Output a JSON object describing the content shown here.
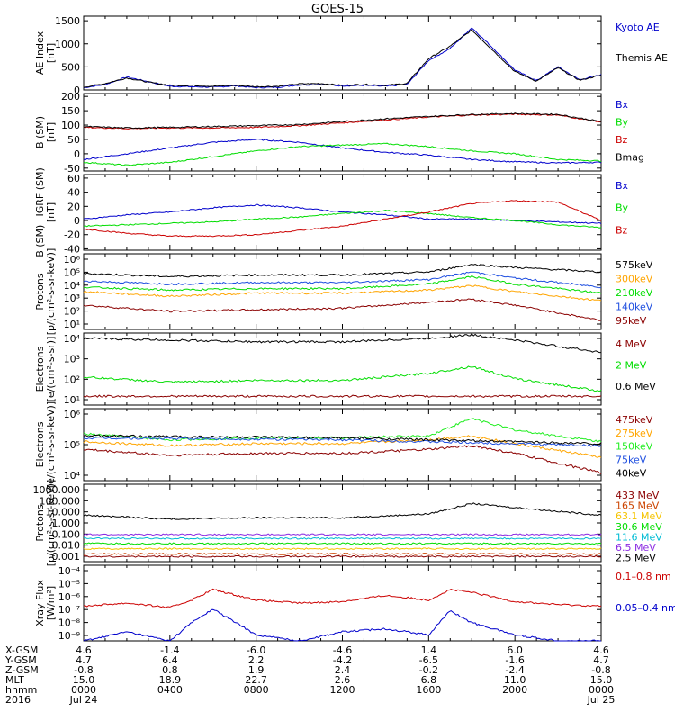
{
  "title": "GOES-15",
  "colors": {
    "black": "#000000",
    "blue": "#0000cc",
    "green": "#00dd00",
    "red": "#cc0000",
    "darkred": "#8b0000",
    "orange": "#ffa500",
    "lightgreen": "#22ee22",
    "royalblue": "#1f4fe0",
    "gold": "#f5c400",
    "cyan": "#00bcd4",
    "purple": "#8a2be2"
  },
  "chart_data": [
    {
      "type": "line",
      "ylabel": "AE Index\n[nT]",
      "yticks": [
        "1500",
        "1000",
        "500",
        "0"
      ],
      "series": [
        {
          "name": "Kyoto AE",
          "color": "#0000cc",
          "x": [
            0,
            1,
            2,
            3,
            4,
            5,
            6,
            7,
            8,
            9,
            10,
            11,
            12,
            13,
            14,
            15,
            16,
            17,
            18,
            19,
            20,
            21,
            22,
            23,
            24
          ],
          "values": [
            50,
            120,
            280,
            180,
            80,
            70,
            60,
            90,
            50,
            60,
            110,
            120,
            90,
            100,
            80,
            120,
            640,
            900,
            1350,
            900,
            430,
            200,
            500,
            220,
            330
          ]
        },
        {
          "name": "Themis AE",
          "color": "#000000",
          "x": [
            0,
            1,
            2,
            3,
            4,
            5,
            6,
            7,
            8,
            9,
            10,
            11,
            12,
            13,
            14,
            15,
            16,
            17,
            18,
            19,
            20,
            21,
            22,
            23,
            24
          ],
          "values": [
            60,
            140,
            260,
            170,
            100,
            100,
            80,
            100,
            70,
            80,
            130,
            140,
            100,
            120,
            100,
            140,
            680,
            950,
            1300,
            850,
            400,
            190,
            480,
            210,
            320
          ]
        }
      ]
    },
    {
      "type": "line",
      "ylabel": "B (SM)\n[nT]",
      "yticks": [
        "200",
        "150",
        "100",
        "50",
        "0",
        "-50"
      ],
      "series": [
        {
          "name": "Bx",
          "color": "#0000cc",
          "x": [
            0,
            2,
            4,
            6,
            8,
            10,
            12,
            14,
            16,
            18,
            20,
            22,
            24
          ],
          "values": [
            -20,
            0,
            20,
            40,
            50,
            40,
            20,
            5,
            -5,
            -20,
            -28,
            -32,
            -30
          ]
        },
        {
          "name": "By",
          "color": "#00dd00",
          "x": [
            0,
            2,
            4,
            6,
            8,
            10,
            12,
            14,
            16,
            18,
            20,
            22,
            24
          ],
          "values": [
            -30,
            -40,
            -30,
            -10,
            10,
            25,
            30,
            35,
            25,
            10,
            0,
            -20,
            -25
          ]
        },
        {
          "name": "Bz",
          "color": "#cc0000",
          "x": [
            0,
            2,
            4,
            6,
            8,
            10,
            12,
            14,
            16,
            18,
            20,
            22,
            24
          ],
          "values": [
            92,
            88,
            90,
            90,
            92,
            98,
            108,
            118,
            128,
            135,
            138,
            135,
            110
          ]
        },
        {
          "name": "Bmag",
          "color": "#000000",
          "x": [
            0,
            2,
            4,
            6,
            8,
            10,
            12,
            14,
            16,
            18,
            20,
            22,
            24
          ],
          "values": [
            95,
            90,
            92,
            95,
            98,
            102,
            112,
            122,
            130,
            137,
            140,
            137,
            112
          ]
        }
      ]
    },
    {
      "type": "line",
      "ylabel": "B (SM)−IGRF (SM)\n[nT]",
      "yticks": [
        "60",
        "40",
        "20",
        "0",
        "-20",
        "-40"
      ],
      "series": [
        {
          "name": "Bx",
          "color": "#0000cc",
          "x": [
            0,
            2,
            4,
            6,
            8,
            10,
            12,
            14,
            16,
            18,
            20,
            22,
            24
          ],
          "values": [
            2,
            8,
            12,
            18,
            22,
            18,
            12,
            8,
            2,
            2,
            0,
            -2,
            -4
          ]
        },
        {
          "name": "By",
          "color": "#00dd00",
          "x": [
            0,
            2,
            4,
            6,
            8,
            10,
            12,
            14,
            16,
            18,
            20,
            22,
            24
          ],
          "values": [
            -8,
            -6,
            -4,
            -2,
            2,
            5,
            10,
            14,
            10,
            4,
            0,
            -6,
            -10
          ]
        },
        {
          "name": "Bz",
          "color": "#cc0000",
          "x": [
            0,
            2,
            4,
            6,
            8,
            10,
            12,
            14,
            16,
            18,
            20,
            22,
            24
          ],
          "values": [
            -12,
            -18,
            -22,
            -22,
            -20,
            -14,
            -8,
            2,
            12,
            24,
            28,
            26,
            0
          ]
        }
      ]
    },
    {
      "type": "line",
      "yscale": "log",
      "ylabel": "Protons\n[p/(cm²-s-sr-keV)]",
      "yticks": [
        "10⁶",
        "10⁵",
        "10⁴",
        "10³",
        "10²",
        "10¹"
      ],
      "ylim_exp": [
        1,
        6
      ],
      "series": [
        {
          "name": "575keV",
          "color": "#000000",
          "x": [
            0,
            4,
            8,
            12,
            16,
            18,
            20,
            24
          ],
          "log10": [
            4.7,
            4.5,
            4.6,
            4.6,
            4.8,
            5.3,
            5.1,
            4.8
          ]
        },
        {
          "name": "300keV",
          "color": "#ffa500",
          "x": [
            0,
            4,
            8,
            12,
            16,
            18,
            20,
            24
          ],
          "log10": [
            3.5,
            3.2,
            3.4,
            3.4,
            3.6,
            3.9,
            3.5,
            2.9
          ]
        },
        {
          "name": "210keV",
          "color": "#00dd00",
          "x": [
            0,
            4,
            8,
            12,
            16,
            18,
            20,
            24
          ],
          "log10": [
            3.8,
            3.6,
            3.7,
            3.7,
            4.0,
            4.5,
            4.0,
            3.4
          ]
        },
        {
          "name": "140keV",
          "color": "#1f4fe0",
          "x": [
            0,
            4,
            8,
            12,
            16,
            18,
            20,
            24
          ],
          "log10": [
            4.2,
            4.0,
            4.1,
            4.1,
            4.3,
            4.8,
            4.4,
            3.8
          ]
        },
        {
          "name": "95keV",
          "color": "#8b0000",
          "x": [
            0,
            4,
            8,
            12,
            16,
            18,
            20,
            24
          ],
          "log10": [
            2.6,
            2.2,
            2.3,
            2.4,
            2.8,
            3.0,
            2.6,
            1.6
          ]
        }
      ]
    },
    {
      "type": "line",
      "yscale": "log",
      "ylabel": "Electrons\n[e/(cm²-s-sr)]",
      "yticks": [
        "10⁴",
        "10³",
        "10²",
        "10¹"
      ],
      "ylim_exp": [
        0.5,
        4.6
      ],
      "series": [
        {
          "name": "4 MeV",
          "color": "#8b0000",
          "x": [
            0,
            6,
            12,
            18,
            24
          ],
          "log10": [
            1.0,
            1.0,
            1.0,
            1.0,
            1.0
          ]
        },
        {
          "name": "2 MeV",
          "color": "#00dd00",
          "x": [
            0,
            4,
            8,
            12,
            16,
            18,
            20,
            24
          ],
          "log10": [
            2.1,
            1.8,
            1.9,
            1.9,
            2.3,
            2.7,
            2.0,
            1.3
          ]
        },
        {
          "name": "0.6 MeV",
          "color": "#000000",
          "x": [
            0,
            4,
            8,
            12,
            16,
            18,
            20,
            24
          ],
          "log10": [
            4.3,
            4.2,
            4.1,
            4.1,
            4.3,
            4.5,
            4.2,
            3.5
          ]
        }
      ]
    },
    {
      "type": "line",
      "yscale": "log",
      "ylabel": "Electrons\n[e/(cm²-s-sr-keV)]",
      "yticks": [
        "10⁶",
        "10⁵",
        "10⁴"
      ],
      "ylim_exp": [
        3.2,
        6.9
      ],
      "series": [
        {
          "name": "475keV",
          "color": "#8b0000",
          "x": [
            0,
            4,
            8,
            12,
            16,
            18,
            20,
            24
          ],
          "log10": [
            4.8,
            4.5,
            4.6,
            4.6,
            4.8,
            5.0,
            4.6,
            3.6
          ]
        },
        {
          "name": "275keV",
          "color": "#ffa500",
          "x": [
            0,
            4,
            8,
            12,
            16,
            18,
            20,
            24
          ],
          "log10": [
            5.2,
            5.0,
            5.1,
            5.1,
            5.3,
            5.5,
            5.1,
            4.4
          ]
        },
        {
          "name": "150keV",
          "color": "#22ee22",
          "x": [
            0,
            4,
            8,
            12,
            16,
            18,
            20,
            24
          ],
          "log10": [
            5.6,
            5.3,
            5.4,
            5.4,
            5.5,
            6.4,
            5.8,
            5.2
          ]
        },
        {
          "name": "75keV",
          "color": "#1f4fe0",
          "x": [
            0,
            12,
            24
          ],
          "log10": [
            5.4,
            5.3,
            5.0
          ]
        },
        {
          "name": "40keV",
          "color": "#000000",
          "x": [
            0,
            12,
            24
          ],
          "log10": [
            5.5,
            5.4,
            5.1
          ]
        }
      ]
    },
    {
      "type": "line",
      "yscale": "log",
      "ylabel": "Protons\n[p/(cm²-s-sr-keV)]",
      "yticks": [
        "1000.000",
        "100.000",
        "10.000",
        "1.000",
        "0.100",
        "0.010",
        "0.001"
      ],
      "ylim_exp": [
        -3,
        3
      ],
      "series": [
        {
          "name": "433 MeV",
          "color": "#8b0000",
          "x": [
            0,
            24
          ],
          "log10": [
            -2.6,
            -2.6
          ]
        },
        {
          "name": "165 MeV",
          "color": "#cc4400",
          "x": [
            0,
            24
          ],
          "log10": [
            -2.4,
            -2.4
          ]
        },
        {
          "name": "63.1 MeV",
          "color": "#f5c400",
          "x": [
            0,
            24
          ],
          "log10": [
            -2.0,
            -2.0
          ]
        },
        {
          "name": "30.6 MeV",
          "color": "#00dd00",
          "x": [
            0,
            24
          ],
          "log10": [
            -1.6,
            -1.6
          ]
        },
        {
          "name": "11.6 MeV",
          "color": "#00bcd4",
          "x": [
            0,
            24
          ],
          "log10": [
            -1.2,
            -1.2
          ]
        },
        {
          "name": "6.5 MeV",
          "color": "#8a2be2",
          "x": [
            0,
            24
          ],
          "log10": [
            -0.9,
            -0.9
          ]
        },
        {
          "name": "2.5 MeV",
          "color": "#000000",
          "x": [
            0,
            4,
            8,
            12,
            16,
            18,
            20,
            24
          ],
          "log10": [
            0.6,
            0.3,
            0.4,
            0.4,
            0.7,
            1.5,
            1.2,
            0.6
          ]
        }
      ]
    },
    {
      "type": "line",
      "yscale": "log",
      "ylabel": "Xray Flux\n[W/m²]",
      "yticks": [
        "10⁻⁴",
        "10⁻⁵",
        "10⁻⁶",
        "10⁻⁷",
        "10⁻⁸",
        "10⁻⁹"
      ],
      "ylim_exp": [
        -9,
        -4
      ],
      "series": [
        {
          "name": "0.1–0.8 nm",
          "color": "#cc0000",
          "x": [
            0,
            2,
            4,
            5,
            6,
            8,
            10,
            12,
            14,
            16,
            17,
            18,
            20,
            22,
            24
          ],
          "log10": [
            -6.7,
            -6.5,
            -6.8,
            -6.3,
            -5.6,
            -6.3,
            -6.5,
            -6.4,
            -6.0,
            -6.3,
            -5.6,
            -5.8,
            -6.4,
            -6.6,
            -6.7
          ]
        },
        {
          "name": "0.05–0.4 nm",
          "color": "#0000cc",
          "x": [
            0,
            2,
            4,
            5,
            6,
            8,
            10,
            12,
            14,
            16,
            17,
            18,
            20,
            22,
            24
          ],
          "log10": [
            -9.0,
            -8.4,
            -9.0,
            -7.8,
            -6.9,
            -8.6,
            -9.0,
            -8.4,
            -8.2,
            -8.6,
            -7.0,
            -7.8,
            -8.6,
            -9.0,
            -9.0
          ]
        }
      ]
    }
  ],
  "footer": {
    "row_labels": [
      "X-GSM",
      "Y-GSM",
      "Z-GSM",
      "MLT",
      "hhmm",
      "2016"
    ],
    "columns": [
      [
        "4.6",
        "4.7",
        "-0.8",
        "15.0",
        "0000",
        "Jul 24"
      ],
      [
        "-1.4",
        "6.4",
        "0.8",
        "18.9",
        "0400",
        ""
      ],
      [
        "-6.0",
        "2.2",
        "1.9",
        "22.7",
        "0800",
        ""
      ],
      [
        "-4.6",
        "-4.2",
        "2.4",
        "2.6",
        "1200",
        ""
      ],
      [
        "1.4",
        "-6.5",
        "-0.2",
        "6.8",
        "1600",
        ""
      ],
      [
        "6.0",
        "-1.6",
        "-2.4",
        "11.0",
        "2000",
        ""
      ],
      [
        "4.6",
        "4.7",
        "-0.8",
        "15.0",
        "0000",
        "Jul 25"
      ]
    ]
  }
}
